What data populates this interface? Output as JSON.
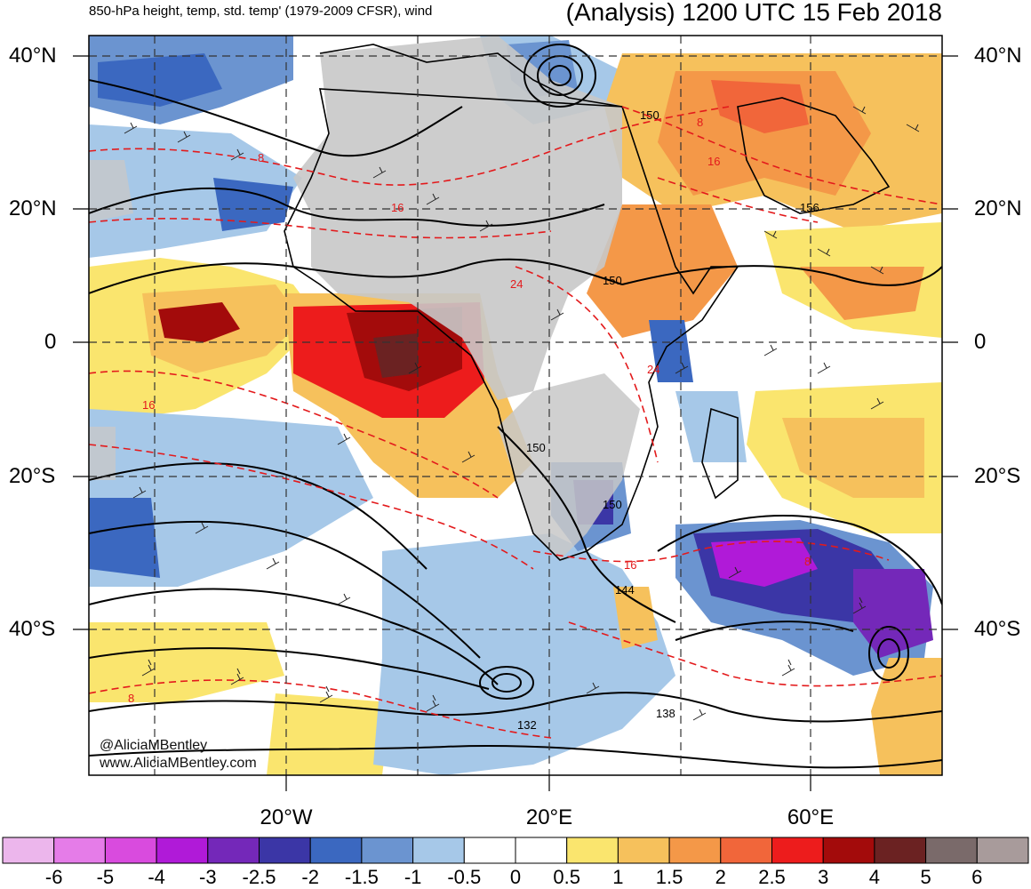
{
  "header": {
    "title_left": "850-hPa height, temp, std. temp' (1979-2009 CFSR), wind",
    "title_right": "(Analysis) 1200 UTC 15 Feb 2018"
  },
  "map": {
    "lat_labels": [
      "40°N",
      "20°N",
      "0",
      "20°S",
      "40°S"
    ],
    "lon_labels": [
      "20°W",
      "20°E",
      "60°E"
    ],
    "height_contour_labels": [
      "150",
      "156",
      "150",
      "150",
      "150",
      "144",
      "138",
      "132"
    ],
    "temp_contour_labels": [
      "8",
      "16",
      "8",
      "16",
      "24",
      "24",
      "16",
      "16",
      "8",
      "8"
    ],
    "watermark_lines": [
      "@AliciaMBentley",
      "www.AliciaMBentley.com"
    ]
  },
  "colorbar": {
    "colors": [
      "#ecb6ec",
      "#e57ce8",
      "#d94bde",
      "#b01ad8",
      "#7428b9",
      "#3b36a6",
      "#3b68c0",
      "#6b94d0",
      "#a6c8e8",
      "#ffffff",
      "#ffffff",
      "#fae56e",
      "#f6c15c",
      "#f49848",
      "#f1663a",
      "#ed1c1c",
      "#a30b0b",
      "#6b2222",
      "#7a6a6a",
      "#a89b9b"
    ],
    "labels": [
      "-6",
      "-5",
      "-4",
      "-3",
      "-2.5",
      "-2",
      "-1.5",
      "-1",
      "-0.5",
      "0",
      "0.5",
      "1",
      "1.5",
      "2",
      "2.5",
      "3",
      "4",
      "5",
      "6"
    ]
  },
  "palette": {
    "land_gray": "#c8c8c8",
    "height_contour": "#000000",
    "temp_contour": "#e31a1c",
    "grid_line": "#333333"
  }
}
